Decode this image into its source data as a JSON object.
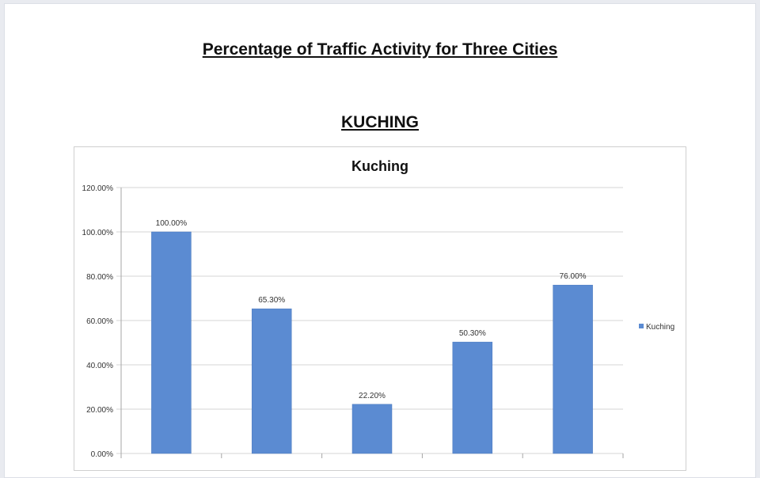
{
  "document": {
    "title": "Percentage of Traffic Activity for Three Cities",
    "section_title": "KUCHING"
  },
  "colors": {
    "bar": "#5b8bd2",
    "bar_stroke": "#4a78bd",
    "gridline": "#d4d4d4",
    "axis": "#a6a6a6"
  },
  "chart_data": {
    "type": "bar",
    "title": "Kuching",
    "categories": [
      "",
      "",
      "",
      "",
      ""
    ],
    "series": [
      {
        "name": "Kuching",
        "values": [
          100.0,
          65.3,
          22.2,
          50.3,
          76.0
        ]
      }
    ],
    "data_labels": [
      "100.00%",
      "65.30%",
      "22.20%",
      "50.30%",
      "76.00%"
    ],
    "y_ticks": [
      "0.00%",
      "20.00%",
      "40.00%",
      "60.00%",
      "80.00%",
      "100.00%",
      "120.00%"
    ],
    "ylim": [
      0,
      120
    ],
    "grid": true,
    "legend_position": "right"
  }
}
